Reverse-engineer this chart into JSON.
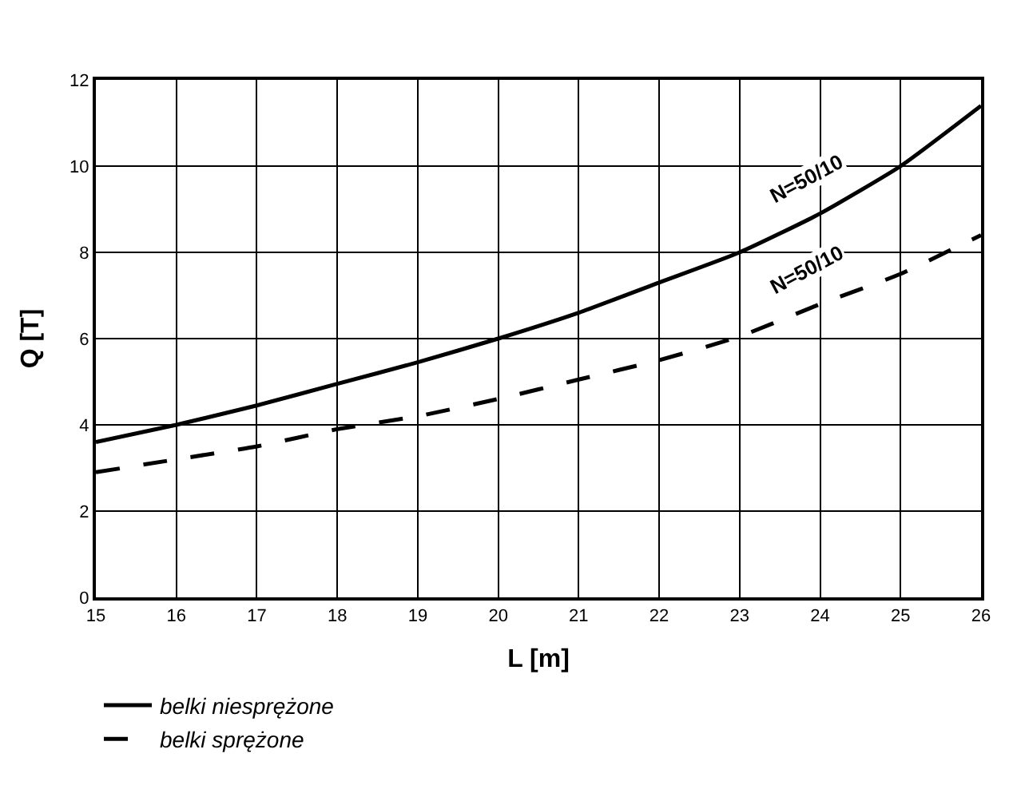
{
  "chart_data": {
    "type": "line",
    "xlabel": "L [m]",
    "ylabel": "Q [T]",
    "x": [
      15,
      16,
      17,
      18,
      19,
      20,
      21,
      22,
      23,
      24,
      25,
      26
    ],
    "series": [
      {
        "name": "belki niesprężone",
        "color": "#000000",
        "line_style": "solid",
        "values": [
          3.6,
          4.0,
          4.45,
          4.95,
          5.45,
          6.0,
          6.6,
          7.3,
          8.0,
          8.9,
          10.0,
          11.4
        ]
      },
      {
        "name": "belki sprężone",
        "color": "#000000",
        "line_style": "dashed",
        "values": [
          2.9,
          3.2,
          3.5,
          3.9,
          4.2,
          4.6,
          5.05,
          5.5,
          6.05,
          6.8,
          7.5,
          8.4
        ]
      }
    ],
    "annotations": [
      {
        "text": "N=50/10",
        "x": 24,
        "y": 8.9
      },
      {
        "text": "N=50/10",
        "x": 24,
        "y": 6.8
      }
    ],
    "xlim": [
      15,
      26
    ],
    "xticks": [
      15,
      16,
      17,
      18,
      19,
      20,
      21,
      22,
      23,
      24,
      25,
      26
    ],
    "ylim": [
      0,
      12
    ],
    "yticks": [
      0,
      2,
      4,
      6,
      8,
      10,
      12
    ],
    "grid": true,
    "legend": "bottom left",
    "marker": "none"
  }
}
